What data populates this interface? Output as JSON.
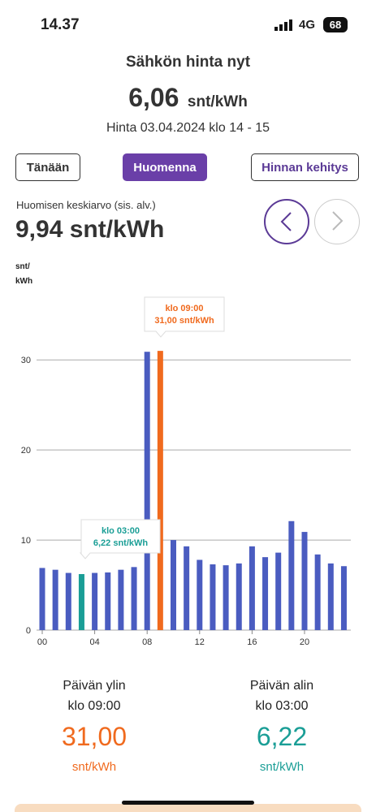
{
  "status_bar": {
    "time": "14.37",
    "network": "4G",
    "battery": "68"
  },
  "header": {
    "title": "Sähkön hinta nyt",
    "price": "6,06",
    "unit": "snt/kWh",
    "period": "Hinta 03.04.2024 klo 14 - 15"
  },
  "tabs": [
    "Tänään",
    "Huomenna",
    "Hinnan kehitys"
  ],
  "average": {
    "label": "Huomisen keskiarvo (sis. alv.)",
    "value": "9,94 snt/kWh"
  },
  "chart_data": {
    "type": "bar",
    "y_label": [
      "snt/",
      "kWh"
    ],
    "categories": [
      "00",
      null,
      null,
      null,
      "04",
      null,
      null,
      null,
      "08",
      null,
      null,
      null,
      "12",
      null,
      null,
      null,
      "16",
      null,
      null,
      null,
      "20",
      null,
      null,
      null
    ],
    "values": [
      6.9,
      6.7,
      6.35,
      6.22,
      6.35,
      6.4,
      6.7,
      7.0,
      30.9,
      31.0,
      10.0,
      9.3,
      7.8,
      7.3,
      7.2,
      7.4,
      9.3,
      8.1,
      8.6,
      12.1,
      10.9,
      8.4,
      7.4,
      7.1
    ],
    "colors": [
      "#4a5cc0",
      "#4a5cc0",
      "#4a5cc0",
      "#1a9e96",
      "#4a5cc0",
      "#4a5cc0",
      "#4a5cc0",
      "#4a5cc0",
      "#4a5cc0",
      "#f06a1e",
      "#4a5cc0",
      "#4a5cc0",
      "#4a5cc0",
      "#4a5cc0",
      "#4a5cc0",
      "#4a5cc0",
      "#4a5cc0",
      "#4a5cc0",
      "#4a5cc0",
      "#4a5cc0",
      "#4a5cc0",
      "#4a5cc0",
      "#4a5cc0",
      "#4a5cc0"
    ],
    "ylim": [
      0,
      37.5
    ],
    "yticks": [
      0,
      10,
      20,
      30
    ],
    "grid": true,
    "annotations": [
      {
        "time": "klo 09:00",
        "price": "31,00 snt/kWh"
      },
      {
        "time": "klo 03:00",
        "price": "6,22 snt/kWh"
      }
    ]
  },
  "summary": [
    {
      "label": "Päivän ylin",
      "time": "klo 09:00",
      "value": "31,00",
      "unit": "snt/kWh"
    },
    {
      "label": "Päivän alin",
      "time": "klo 03:00",
      "value": "6,22",
      "unit": "snt/kWh"
    }
  ]
}
